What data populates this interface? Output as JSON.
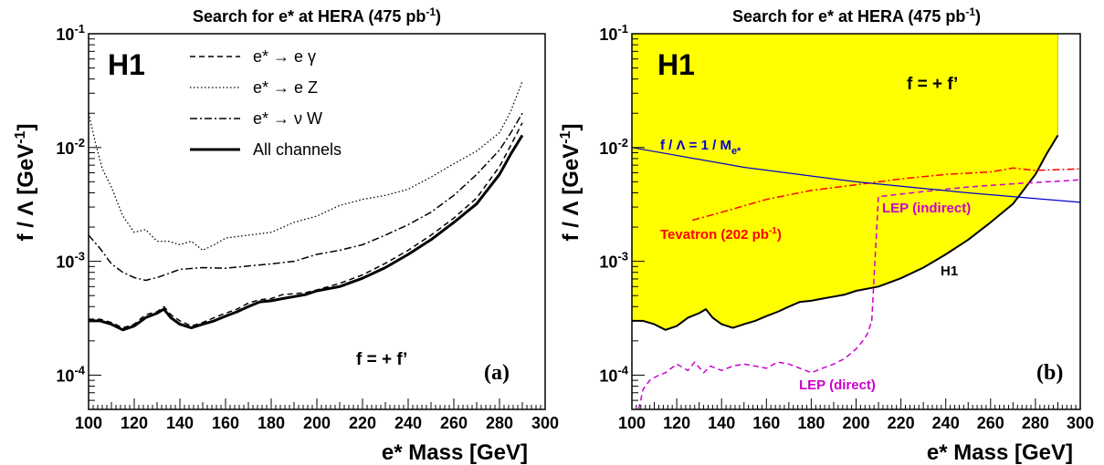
{
  "chart_data": [
    {
      "panel": "a",
      "type": "line",
      "title": "Search for e* at HERA (475 pb",
      "title_sup": "-1",
      "title_close": ")",
      "xlabel": "e* Mass [GeV]",
      "ylabel": "f / Λ [GeV",
      "ylabel_sup": "-1",
      "ylabel_close": "]",
      "xlim": [
        100,
        300
      ],
      "ylim": [
        5e-05,
        0.1
      ],
      "yscale": "log",
      "experiment_label": "H1",
      "coupling_label": "f = + f’",
      "panel_label": "(a)",
      "legend_position": "top-center",
      "x_ticks": [
        "100",
        "120",
        "140",
        "160",
        "180",
        "200",
        "220",
        "240",
        "260",
        "280",
        "300"
      ],
      "y_ticks": [
        {
          "base": "10",
          "exp": "-1",
          "value": 0.1
        },
        {
          "base": "10",
          "exp": "-2",
          "value": 0.01
        },
        {
          "base": "10",
          "exp": "-3",
          "value": 0.001
        },
        {
          "base": "10",
          "exp": "-4",
          "value": 0.0001
        }
      ],
      "series": [
        {
          "name": "e* → e γ",
          "style": "dashed",
          "x": [
            100,
            105,
            110,
            115,
            120,
            125,
            130,
            133,
            136,
            140,
            145,
            150,
            155,
            160,
            165,
            170,
            175,
            180,
            185,
            190,
            195,
            200,
            210,
            220,
            230,
            240,
            250,
            260,
            270,
            280,
            285,
            290
          ],
          "y": [
            0.00031,
            0.00031,
            0.00029,
            0.00026,
            0.00028,
            0.00034,
            0.00036,
            0.0004,
            0.00034,
            0.0003,
            0.00027,
            0.00029,
            0.00032,
            0.00035,
            0.00038,
            0.00043,
            0.00046,
            0.00047,
            0.00051,
            0.00052,
            0.00053,
            0.00056,
            0.00064,
            0.00076,
            0.00096,
            0.00125,
            0.0017,
            0.0024,
            0.0036,
            0.0068,
            0.0105,
            0.0165
          ]
        },
        {
          "name": "e* → e Z",
          "style": "dotted",
          "x": [
            100,
            103,
            106,
            110,
            115,
            120,
            125,
            130,
            135,
            140,
            145,
            150,
            155,
            160,
            170,
            180,
            190,
            200,
            210,
            220,
            230,
            240,
            250,
            260,
            270,
            280,
            285,
            290
          ],
          "y": [
            0.02,
            0.011,
            0.0065,
            0.0045,
            0.0025,
            0.0018,
            0.0019,
            0.0015,
            0.0015,
            0.0014,
            0.0015,
            0.00125,
            0.0014,
            0.0016,
            0.0017,
            0.0018,
            0.0022,
            0.0025,
            0.0031,
            0.0035,
            0.0038,
            0.0043,
            0.0055,
            0.0072,
            0.0093,
            0.0135,
            0.021,
            0.038
          ]
        },
        {
          "name": "e* → ν W",
          "style": "dashdot",
          "x": [
            100,
            105,
            110,
            115,
            120,
            125,
            130,
            135,
            140,
            150,
            160,
            170,
            180,
            190,
            200,
            210,
            220,
            230,
            240,
            250,
            260,
            270,
            280,
            285,
            290
          ],
          "y": [
            0.0017,
            0.0013,
            0.00095,
            0.0008,
            0.00072,
            0.00068,
            0.00072,
            0.00078,
            0.00085,
            0.00088,
            0.00087,
            0.00091,
            0.00095,
            0.001,
            0.00115,
            0.00125,
            0.0014,
            0.0017,
            0.0021,
            0.0027,
            0.0038,
            0.0058,
            0.0095,
            0.0135,
            0.02
          ]
        },
        {
          "name": "All channels",
          "style": "solid-thick",
          "x": [
            100,
            105,
            110,
            115,
            120,
            125,
            130,
            133,
            136,
            140,
            145,
            150,
            155,
            160,
            165,
            170,
            175,
            180,
            185,
            190,
            195,
            200,
            210,
            220,
            230,
            240,
            250,
            260,
            270,
            280,
            285,
            290
          ],
          "y": [
            0.0003,
            0.0003,
            0.00028,
            0.00025,
            0.00027,
            0.00032,
            0.00035,
            0.00038,
            0.00032,
            0.00028,
            0.00026,
            0.00028,
            0.0003,
            0.00033,
            0.00036,
            0.0004,
            0.00044,
            0.00045,
            0.00047,
            0.00049,
            0.00051,
            0.00055,
            0.0006,
            0.00071,
            0.00088,
            0.00115,
            0.00155,
            0.0022,
            0.0032,
            0.0058,
            0.0088,
            0.0128
          ]
        }
      ]
    },
    {
      "panel": "b",
      "type": "area",
      "title": "Search for e* at HERA (475 pb",
      "title_sup": "-1",
      "title_close": ")",
      "xlabel": "e* Mass [GeV]",
      "ylabel": "f / Λ [GeV",
      "ylabel_sup": "-1",
      "ylabel_close": "]",
      "xlim": [
        100,
        300
      ],
      "ylim": [
        5e-05,
        0.1
      ],
      "yscale": "log",
      "experiment_label": "H1",
      "coupling_label": "f = + f’",
      "panel_label": "(b)",
      "x_ticks": [
        "100",
        "120",
        "140",
        "160",
        "180",
        "200",
        "220",
        "240",
        "260",
        "280",
        "300"
      ],
      "y_ticks": [
        {
          "base": "10",
          "exp": "-1",
          "value": 0.1
        },
        {
          "base": "10",
          "exp": "-2",
          "value": 0.01
        },
        {
          "base": "10",
          "exp": "-3",
          "value": 0.001
        },
        {
          "base": "10",
          "exp": "-4",
          "value": 0.0001
        }
      ],
      "colors": {
        "excluded_region": "#ffff00",
        "h1": "#000000",
        "tevatron": "#ff0000",
        "lep": "#cc00cc",
        "line": "#0000cc"
      },
      "annotations": {
        "line_label": "f / Λ  = 1 / M",
        "line_label_sub": "e*",
        "tevatron_label": "Tevatron (202 pb",
        "tevatron_label_sup": "-1",
        "tevatron_label_close": ")",
        "lep_indirect_label": "LEP (indirect)",
        "lep_direct_label": "LEP (direct)",
        "h1_curve_label": "H1"
      },
      "series": [
        {
          "name": "H1",
          "style": "solid",
          "fill": "above",
          "x": [
            100,
            105,
            110,
            115,
            120,
            125,
            130,
            133,
            136,
            140,
            145,
            150,
            155,
            160,
            165,
            170,
            175,
            180,
            185,
            190,
            195,
            200,
            210,
            220,
            230,
            240,
            250,
            260,
            270,
            280,
            285,
            290
          ],
          "y": [
            0.0003,
            0.0003,
            0.00028,
            0.00025,
            0.00027,
            0.00032,
            0.00035,
            0.00038,
            0.00032,
            0.00028,
            0.00026,
            0.00028,
            0.0003,
            0.00033,
            0.00036,
            0.0004,
            0.00044,
            0.00045,
            0.00047,
            0.00049,
            0.00051,
            0.00055,
            0.0006,
            0.00071,
            0.00088,
            0.00115,
            0.00155,
            0.0022,
            0.0032,
            0.0058,
            0.0088,
            0.0128
          ]
        },
        {
          "name": "Tevatron (202 pb-1)",
          "style": "dashdot",
          "x": [
            127,
            140,
            160,
            180,
            200,
            220,
            240,
            260,
            270,
            280,
            300
          ],
          "y": [
            0.0023,
            0.0027,
            0.0035,
            0.0042,
            0.0047,
            0.0053,
            0.0058,
            0.0061,
            0.0066,
            0.0063,
            0.0065
          ]
        },
        {
          "name": "LEP (direct)",
          "style": "dashed",
          "x": [
            103,
            105,
            108,
            112,
            115,
            120,
            125,
            128,
            132,
            135,
            140,
            145,
            150,
            155,
            160,
            165,
            170,
            175,
            180,
            185,
            190,
            195,
            200,
            203,
            205,
            207
          ],
          "y": [
            5e-05,
            7.5e-05,
            9e-05,
            0.0001,
            0.000105,
            0.000125,
            0.00011,
            0.00013,
            0.000105,
            0.00012,
            0.00011,
            0.00012,
            0.000125,
            0.00012,
            0.000115,
            0.00013,
            0.000125,
            0.000115,
            0.000105,
            0.000115,
            0.000125,
            0.00014,
            0.00017,
            0.0002,
            0.00023,
            0.0003
          ]
        },
        {
          "name": "LEP (indirect)",
          "style": "dashed",
          "x": [
            207,
            208,
            210,
            230,
            250,
            270,
            300
          ],
          "y": [
            0.0003,
            0.0007,
            0.0037,
            0.0041,
            0.0045,
            0.0048,
            0.0052
          ]
        },
        {
          "name": "f / Λ = 1 / M_e*",
          "style": "solid-thin",
          "x": [
            100,
            150,
            200,
            250,
            300
          ],
          "y": [
            0.01,
            0.0067,
            0.005,
            0.004,
            0.0033
          ]
        }
      ]
    }
  ]
}
